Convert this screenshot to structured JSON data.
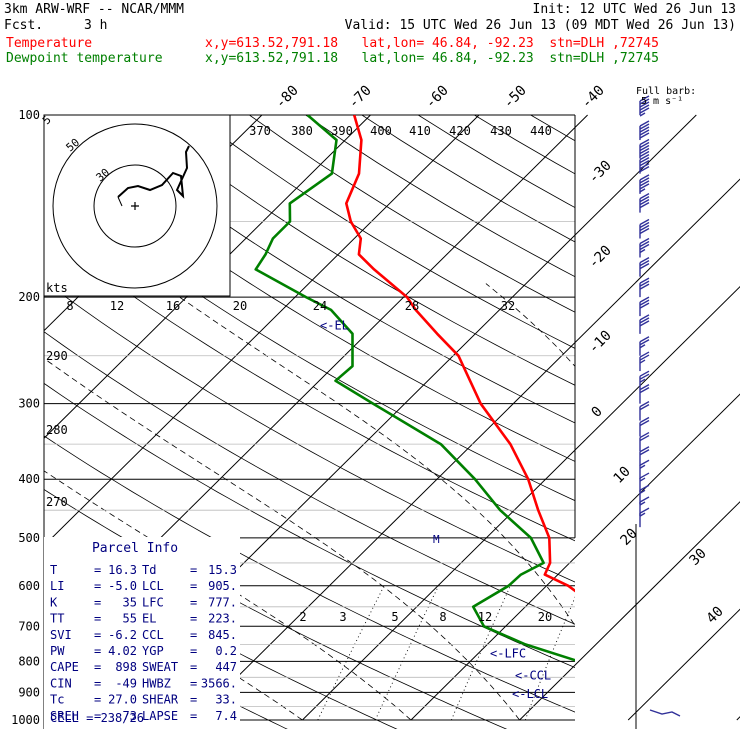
{
  "header": {
    "model": "3km ARW-WRF -- NCAR/MMM",
    "init": "Init: 12 UTC Wed 26 Jun 13",
    "fcst_label": "Fcst.",
    "fcst_value": "3 h",
    "valid": "Valid: 15 UTC Wed 26 Jun 13 (09 MDT Wed 26 Jun 13)",
    "temp_label": "Temperature",
    "temp_info": "x,y=613.52,791.18   lat,lon= 46.84, -92.23  stn=DLH ,72745",
    "dew_label": "Dewpoint temperature",
    "dew_info": "x,y=613.52,791.18   lat,lon= 46.84, -92.23  stn=DLH ,72745"
  },
  "colors": {
    "temperature": "#ff0000",
    "dewpoint": "#008000",
    "info": "#000080",
    "axes": "#000000"
  },
  "chart_data": {
    "type": "line",
    "chart_kind": "skew-T log-p",
    "y_axis": {
      "label": "pressure (hPa)",
      "ticks": [
        "100",
        "200",
        "300",
        "400",
        "500",
        "600",
        "700",
        "800",
        "900",
        "1000"
      ],
      "scale": "log",
      "range": [
        1000,
        100
      ]
    },
    "skew_temp_labels": [
      "-80",
      "-70",
      "-60",
      "-50",
      "-40",
      "-30",
      "-20",
      "-10",
      "0",
      "10",
      "20",
      "30",
      "40"
    ],
    "theta_labels": [
      "370",
      "380",
      "390",
      "400",
      "410",
      "420",
      "430",
      "440"
    ],
    "theta_left_labels": [
      "290",
      "280",
      "270"
    ],
    "mixing_ratio_labels": [
      "2",
      "3",
      "5",
      "8",
      "12",
      "20"
    ],
    "hodograph_kts_label": "kts",
    "hodograph_ring_labels": [
      "5",
      "50",
      "30"
    ],
    "hodograph_axis_labels": [
      "8",
      "12",
      "16",
      "20",
      "24",
      "28",
      "32"
    ],
    "wind_barb_title": "Full barb:",
    "wind_barb_unit": "5 m s⁻¹",
    "series": [
      {
        "name": "Temperature",
        "points": [
          [
            1000,
            29.7
          ],
          [
            960,
            28
          ],
          [
            940,
            24.5
          ],
          [
            925,
            23
          ],
          [
            900,
            24.5
          ],
          [
            880,
            21.5
          ],
          [
            850,
            18.7
          ],
          [
            800,
            16.5
          ],
          [
            750,
            14.5
          ],
          [
            700,
            10.5
          ],
          [
            650,
            6.6
          ],
          [
            600,
            2
          ],
          [
            575,
            -1.2
          ],
          [
            550,
            -1.8
          ],
          [
            500,
            -4.2
          ],
          [
            450,
            -7.8
          ],
          [
            400,
            -11.6
          ],
          [
            350,
            -16.5
          ],
          [
            300,
            -23
          ],
          [
            250,
            -29.5
          ],
          [
            230,
            -33.5
          ],
          [
            210,
            -37.7
          ],
          [
            200,
            -39.7
          ],
          [
            180,
            -45.3
          ],
          [
            170,
            -48.1
          ],
          [
            160,
            -49.4
          ],
          [
            150,
            -51.9
          ],
          [
            140,
            -54
          ],
          [
            125,
            -55.6
          ],
          [
            110,
            -58.5
          ],
          [
            100,
            -61.5
          ]
        ]
      },
      {
        "name": "Dewpoint temperature",
        "points": [
          [
            1000,
            29.7
          ],
          [
            960,
            26.5
          ],
          [
            940,
            25
          ],
          [
            925,
            24
          ],
          [
            900,
            24
          ],
          [
            880,
            20.5
          ],
          [
            850,
            17.5
          ],
          [
            800,
            10
          ],
          [
            750,
            3.5
          ],
          [
            700,
            -2
          ],
          [
            650,
            -4.8
          ],
          [
            600,
            -3.5
          ],
          [
            575,
            -3.4
          ],
          [
            550,
            -2.4
          ],
          [
            500,
            -5.9
          ],
          [
            450,
            -11.3
          ],
          [
            400,
            -16.5
          ],
          [
            350,
            -22.9
          ],
          [
            300,
            -32.9
          ],
          [
            275,
            -38.5
          ],
          [
            260,
            -38.3
          ],
          [
            230,
            -41.3
          ],
          [
            210,
            -45.5
          ],
          [
            200,
            -49
          ],
          [
            180,
            -56.2
          ],
          [
            170,
            -56.7
          ],
          [
            160,
            -57.5
          ],
          [
            150,
            -57.5
          ],
          [
            140,
            -59.2
          ],
          [
            125,
            -58.1
          ],
          [
            110,
            -60.8
          ],
          [
            100,
            -65.8
          ]
        ]
      }
    ],
    "markers": [
      {
        "label": "<-EL",
        "pressure": 223
      },
      {
        "label": "<-LFC",
        "pressure": 777
      },
      {
        "label": "<-CCL",
        "pressure": 845
      },
      {
        "label": "<-LCL",
        "pressure": 905
      }
    ],
    "winds_ms": [
      [
        100,
        27.5
      ],
      [
        110,
        27
      ],
      [
        118,
        26.5
      ],
      [
        125,
        25
      ],
      [
        135,
        23.5
      ],
      [
        145,
        22
      ],
      [
        160,
        20
      ],
      [
        172,
        18
      ],
      [
        185,
        17
      ],
      [
        200,
        16
      ],
      [
        215,
        16.5
      ],
      [
        230,
        15.5
      ],
      [
        250,
        14.5
      ],
      [
        265,
        14
      ],
      [
        285,
        13
      ],
      [
        300,
        12
      ],
      [
        320,
        11
      ],
      [
        340,
        10.5
      ],
      [
        360,
        10.5
      ],
      [
        380,
        10
      ],
      [
        400,
        9.5
      ],
      [
        420,
        9.5
      ],
      [
        440,
        9
      ],
      [
        460,
        8.5
      ],
      [
        480,
        8
      ]
    ]
  },
  "parcel_info": {
    "title": "Parcel Info",
    "rows": [
      {
        "k1": "T",
        "v1": "16.3",
        "k2": "Td",
        "v2": "15.3"
      },
      {
        "k1": "LI",
        "v1": "-5.0",
        "k2": "LCL",
        "v2": "905."
      },
      {
        "k1": "K",
        "v1": "35",
        "k2": "LFC",
        "v2": "777."
      },
      {
        "k1": "TT",
        "v1": "55",
        "k2": "EL",
        "v2": "223."
      },
      {
        "k1": "SVI",
        "v1": "-6.2",
        "k2": "CCL",
        "v2": "845."
      },
      {
        "k1": "PW",
        "v1": "4.02",
        "k2": "YGP",
        "v2": "0.2"
      },
      {
        "k1": "CAPE",
        "v1": "898",
        "k2": "SWEAT",
        "v2": "447"
      },
      {
        "k1": "CIN",
        "v1": "-49",
        "k2": "HWBZ",
        "v2": "3566."
      },
      {
        "k1": "Tc",
        "v1": "27.0",
        "k2": "SHEAR",
        "v2": "33."
      },
      {
        "k1": "SREH",
        "v1": "73",
        "k2": "LAPSE",
        "v2": "7.4"
      }
    ],
    "cell": "CELL = 238/26"
  }
}
